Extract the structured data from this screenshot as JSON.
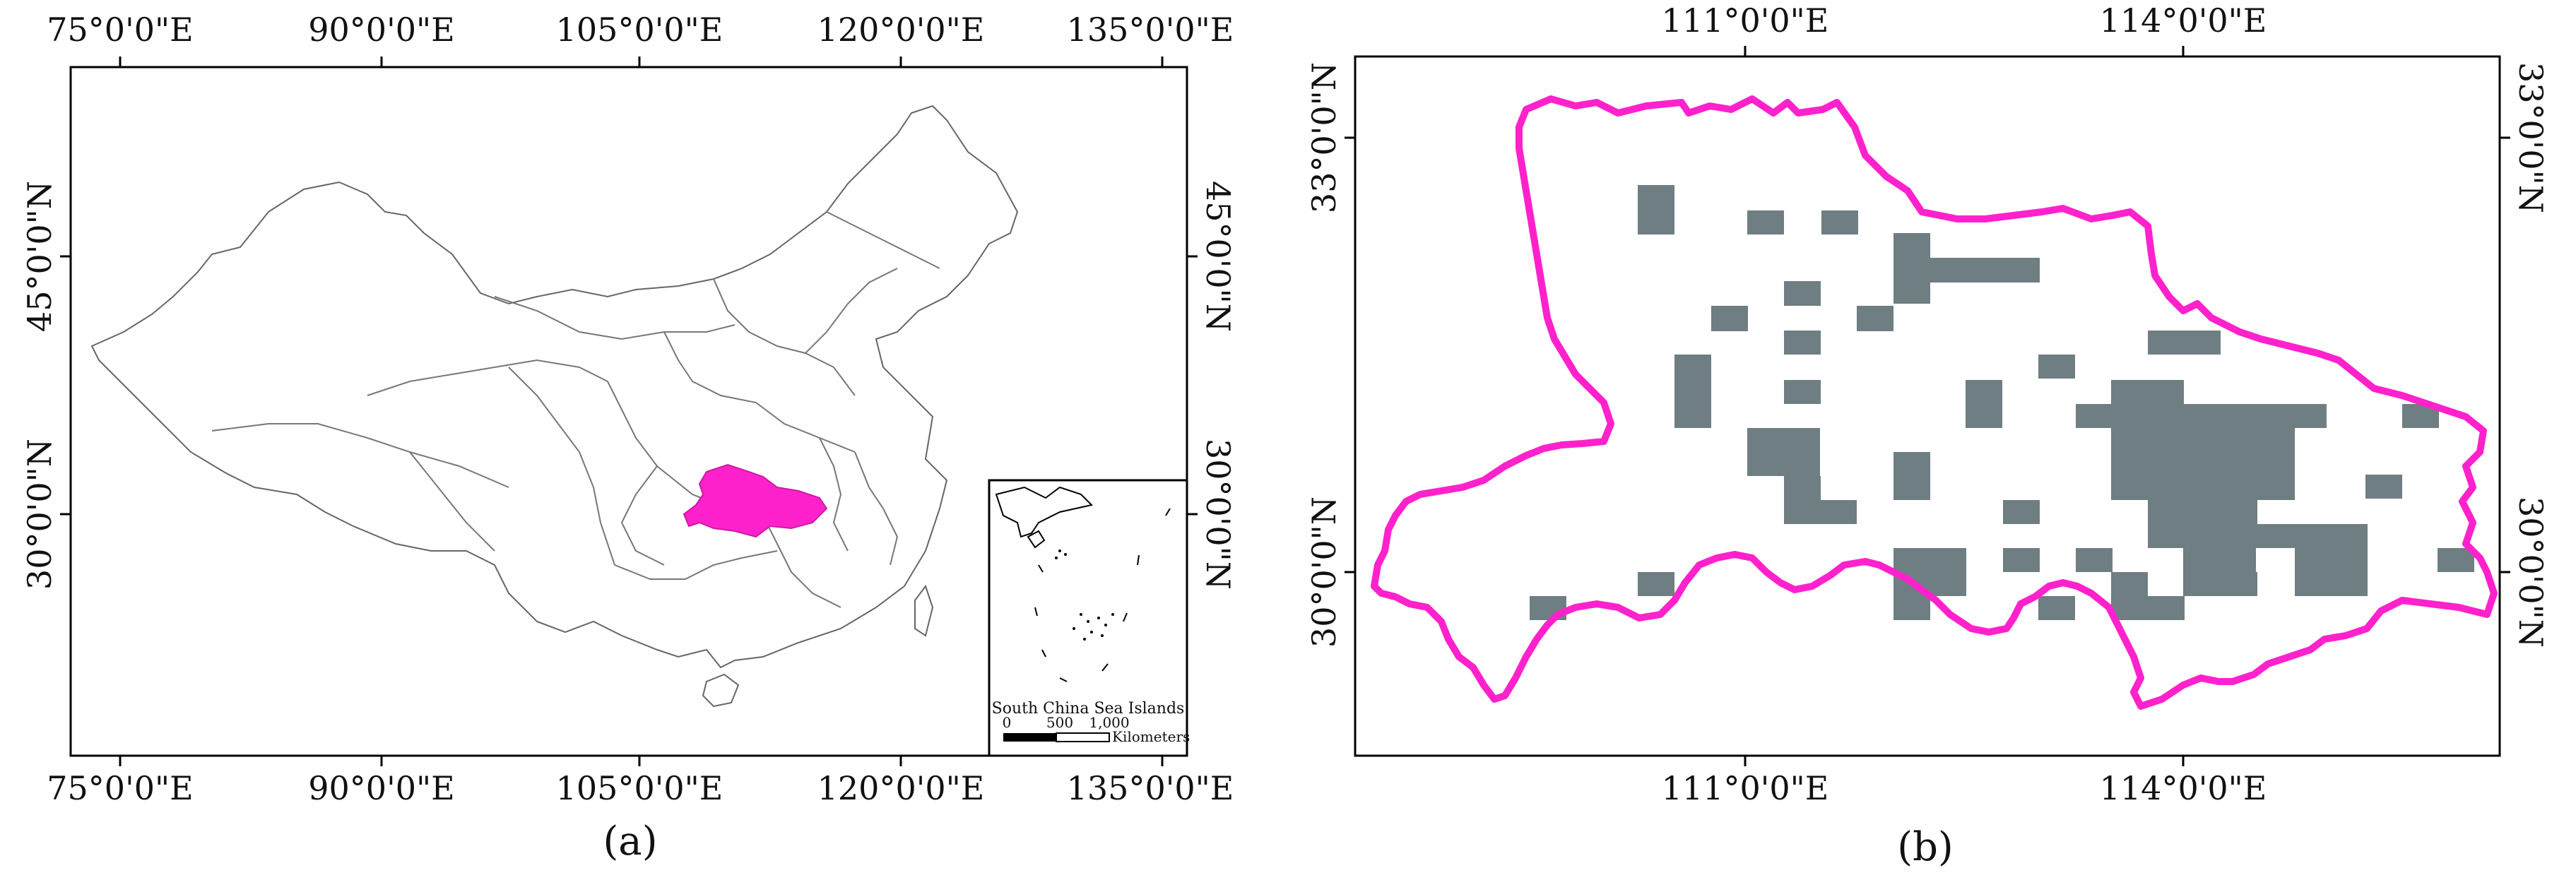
{
  "panel_a": {
    "caption": "(a)",
    "lon_ticks": [
      "75°0'0\"E",
      "90°0'0\"E",
      "105°0'0\"E",
      "120°0'0\"E",
      "135°0'0\"E"
    ],
    "lat_ticks": [
      "30°0'0\"N",
      "45°0'0\"N"
    ],
    "inset": {
      "title": "South China Sea Islands",
      "scale_values": [
        "0",
        "500",
        "1,000"
      ],
      "scale_unit": "Kilometers"
    },
    "colors": {
      "highlight": "#ff22cc",
      "boundary": "#555555",
      "frame": "#000000"
    }
  },
  "panel_b": {
    "caption": "(b)",
    "lon_ticks": [
      "111°0'0\"E",
      "114°0'0\"E"
    ],
    "lat_ticks": [
      "30°0'0\"N",
      "33°0'0\"N"
    ],
    "colors": {
      "boundary": "#ff22cc",
      "tiles": "#6b7a7f",
      "frame": "#000000"
    }
  }
}
